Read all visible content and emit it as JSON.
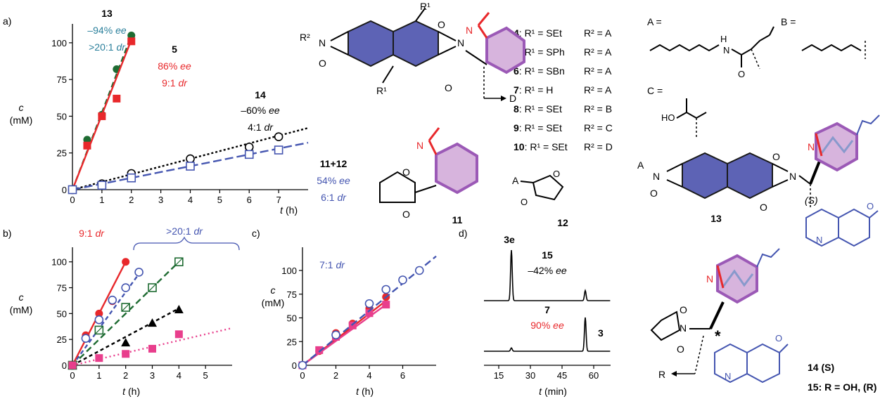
{
  "colors": {
    "red": "#e8282b",
    "teal": "#2a7f9b",
    "green": "#1e6b32",
    "blue": "#4455b0",
    "pink": "#e83e8c",
    "purple": "#9b59b6",
    "naphtha": "#5d63b5",
    "gray": "#333333"
  },
  "panels": {
    "a": "a)",
    "b": "b)",
    "c": "c)",
    "d": "d)"
  },
  "plot_a": {
    "ylabel_var": "c",
    "ylabel_unit": "(mM)",
    "xlabel_var": "t",
    "xlabel_unit": "(h)",
    "ann13": {
      "num": "13",
      "ee": "–94%",
      "ee_suffix": "ee",
      "dr": ">20:1",
      "dr_suffix": "dr"
    },
    "ann5": {
      "num": "5",
      "ee": "86%",
      "ee_suffix": "ee",
      "dr": "9:1",
      "dr_suffix": "dr"
    },
    "ann14": {
      "num": "14",
      "ee": "–60%",
      "ee_suffix": "ee",
      "dr": "4:1",
      "dr_suffix": "dr"
    },
    "ann1112": {
      "num": "11+12",
      "ee": "54%",
      "ee_suffix": "ee",
      "dr": "6:1",
      "dr_suffix": "dr"
    }
  },
  "plot_b": {
    "ylabel_var": "c",
    "ylabel_unit": "(mM)",
    "xlabel_var": "t",
    "xlabel_unit": "(h)",
    "ann_red": {
      "dr": "9:1",
      "dr_suffix": "dr"
    },
    "ann_blue": {
      "dr": ">20:1",
      "dr_suffix": "dr"
    }
  },
  "plot_c": {
    "ylabel_var": "c",
    "ylabel_unit": "(mM)",
    "xlabel_var": "t",
    "xlabel_unit": "(h)",
    "ann": {
      "dr": "7:1",
      "dr_suffix": "dr"
    }
  },
  "plot_d": {
    "xlabel_var": "t",
    "xlabel_unit": "(min)",
    "label_3e": "3e",
    "label_3": "3",
    "trace_top": {
      "num": "15",
      "ee": "–42%",
      "ee_suffix": "ee"
    },
    "trace_bottom": {
      "num": "7",
      "ee": "90%",
      "ee_suffix": "ee"
    }
  },
  "compounds": [
    {
      "num": "4",
      "r1": "R¹ = SEt",
      "r2": "R² = A"
    },
    {
      "num": "5",
      "r1": "R¹ = SPh",
      "r2": "R² = A"
    },
    {
      "num": "6",
      "r1": "R¹ = SBn",
      "r2": "R² = A"
    },
    {
      "num": "7",
      "r1": "R¹ = H",
      "r2": "R² = A"
    },
    {
      "num": "8",
      "r1": "R¹ = SEt",
      "r2": "R² = B"
    },
    {
      "num": "9",
      "r1": "R¹ = SEt",
      "r2": "R² = C"
    },
    {
      "num": "10",
      "r1": "R¹ = SEt",
      "r2": "R² = D"
    }
  ],
  "structures": {
    "label_A": "A =",
    "label_B": "B =",
    "label_C": "C =",
    "label_HO": "HO",
    "label_H": "H",
    "label_N": "N",
    "label_O": "O",
    "label_R1": "R¹",
    "label_R2": "R²",
    "label_D": "D",
    "label_A_sub": "A",
    "label_R": "R",
    "label_S": "(S)",
    "num_11": "11",
    "num_12": "12",
    "num_13": "13",
    "caption_14": "14 (S)",
    "caption_15": "15: R = OH, (R)",
    "star": "*"
  },
  "chart_data": [
    {
      "id": "a",
      "type": "line",
      "xlabel": "t (h)",
      "ylabel": "c (mM)",
      "xlim": [
        0,
        8
      ],
      "ylim": [
        0,
        110
      ],
      "xticks": [
        0,
        1,
        2,
        3,
        4,
        5,
        6,
        7
      ],
      "yticks": [
        0,
        25,
        50,
        75,
        100
      ],
      "series": [
        {
          "color": "#1e6b32",
          "marker": "circle-filled",
          "dash": "8,5",
          "x": [
            0,
            0.5,
            1,
            1.5,
            2
          ],
          "y": [
            0,
            34,
            51,
            82,
            105
          ],
          "fit": [
            [
              0,
              0
            ],
            [
              2,
              105
            ]
          ]
        },
        {
          "color": "#e8282b",
          "marker": "square-filled",
          "dash": "",
          "x": [
            0,
            0.5,
            1,
            1.5,
            2
          ],
          "y": [
            0,
            30,
            50,
            62,
            101
          ],
          "fit": [
            [
              0,
              0
            ],
            [
              2,
              102
            ]
          ]
        },
        {
          "color": "#000000",
          "marker": "circle-open",
          "dash": "3,3",
          "x": [
            0,
            1,
            2,
            4,
            6,
            7
          ],
          "y": [
            0,
            4,
            11,
            21,
            29,
            36
          ],
          "fit": [
            [
              0,
              0
            ],
            [
              8,
              42
            ]
          ]
        },
        {
          "color": "#4455b0",
          "marker": "square-open",
          "dash": "12,5",
          "x": [
            0,
            1,
            2,
            4,
            6,
            7
          ],
          "y": [
            0,
            3,
            8,
            16,
            24,
            27
          ],
          "fit": [
            [
              0,
              0
            ],
            [
              8,
              32
            ]
          ]
        }
      ]
    },
    {
      "id": "b",
      "type": "line",
      "xlabel": "t (h)",
      "ylabel": "c (mM)",
      "xlim": [
        0,
        6
      ],
      "ylim": [
        0,
        110
      ],
      "xticks": [
        0,
        1,
        2,
        3,
        4,
        5
      ],
      "yticks": [
        0,
        25,
        50,
        75,
        100
      ],
      "series": [
        {
          "color": "#e8282b",
          "marker": "circle-filled",
          "dash": "",
          "x": [
            0,
            0.5,
            1,
            1.5,
            2
          ],
          "y": [
            0,
            29,
            50,
            62,
            100
          ],
          "fit": [
            [
              0,
              0
            ],
            [
              2,
              100
            ]
          ]
        },
        {
          "color": "#4455b0",
          "marker": "circle-open",
          "dash": "6,4",
          "x": [
            0,
            0.5,
            1,
            1.5,
            2,
            2.5
          ],
          "y": [
            0,
            26,
            44,
            63,
            75,
            90
          ],
          "fit": [
            [
              0,
              0
            ],
            [
              2.6,
              92
            ]
          ]
        },
        {
          "color": "#1e6b32",
          "marker": "square-hatched",
          "dash": "9,5",
          "x": [
            0,
            1,
            2,
            3,
            4
          ],
          "y": [
            0,
            34,
            56,
            75,
            100
          ],
          "fit": [
            [
              0,
              0
            ],
            [
              4,
              100
            ]
          ]
        },
        {
          "color": "#000000",
          "marker": "triangle-filled",
          "dash": "5,4",
          "x": [
            0,
            2,
            3,
            4
          ],
          "y": [
            0,
            22,
            41,
            54
          ],
          "fit": [
            [
              0,
              0
            ],
            [
              4,
              55
            ]
          ]
        },
        {
          "color": "#e83e8c",
          "marker": "square-filled",
          "dash": "2,4",
          "x": [
            0,
            1,
            2,
            3,
            4
          ],
          "y": [
            0,
            7,
            11,
            16,
            30
          ],
          "fit": [
            [
              0,
              0
            ],
            [
              6,
              36
            ]
          ]
        }
      ]
    },
    {
      "id": "c",
      "type": "line",
      "xlabel": "t (h)",
      "ylabel": "c (mM)",
      "xlim": [
        0,
        8
      ],
      "ylim": [
        0,
        120
      ],
      "xticks": [
        0,
        2,
        4,
        6
      ],
      "yticks": [
        0,
        25,
        50,
        75,
        100
      ],
      "series": [
        {
          "color": "#e8282b",
          "marker": "circle-filled",
          "dash": "",
          "x": [
            0,
            1,
            2,
            3,
            4,
            5
          ],
          "y": [
            0,
            15,
            34,
            44,
            60,
            72
          ],
          "fit": [
            [
              0,
              0
            ],
            [
              5,
              68
            ]
          ]
        },
        {
          "color": "#e83e8c",
          "marker": "square-filled",
          "dash": "",
          "x": [
            0,
            1,
            2,
            3,
            4,
            5
          ],
          "y": [
            0,
            16,
            30,
            42,
            55,
            64
          ],
          "fit": [
            [
              0,
              0
            ],
            [
              5,
              64
            ]
          ]
        },
        {
          "color": "#4455b0",
          "marker": "circle-open",
          "dash": "10,5",
          "x": [
            0,
            2,
            4,
            5,
            6,
            7
          ],
          "y": [
            0,
            32,
            65,
            80,
            90,
            100
          ],
          "fit": [
            [
              0,
              0
            ],
            [
              8,
              115
            ]
          ]
        }
      ]
    },
    {
      "id": "d",
      "type": "line",
      "xlabel": "t (min)",
      "xlim": [
        8,
        68
      ],
      "xticks": [
        15,
        30,
        45,
        60
      ],
      "series": [
        {
          "label": "15",
          "ee": "–42% ee",
          "color": "#000000",
          "peaks": [
            {
              "t": 21,
              "h": 1.0
            },
            {
              "t": 56,
              "h": 0.2
            }
          ]
        },
        {
          "label": "7",
          "ee": "90% ee",
          "color": "#000000",
          "peaks": [
            {
              "t": 21,
              "h": 0.1
            },
            {
              "t": 56,
              "h": 1.0
            }
          ]
        }
      ]
    }
  ]
}
